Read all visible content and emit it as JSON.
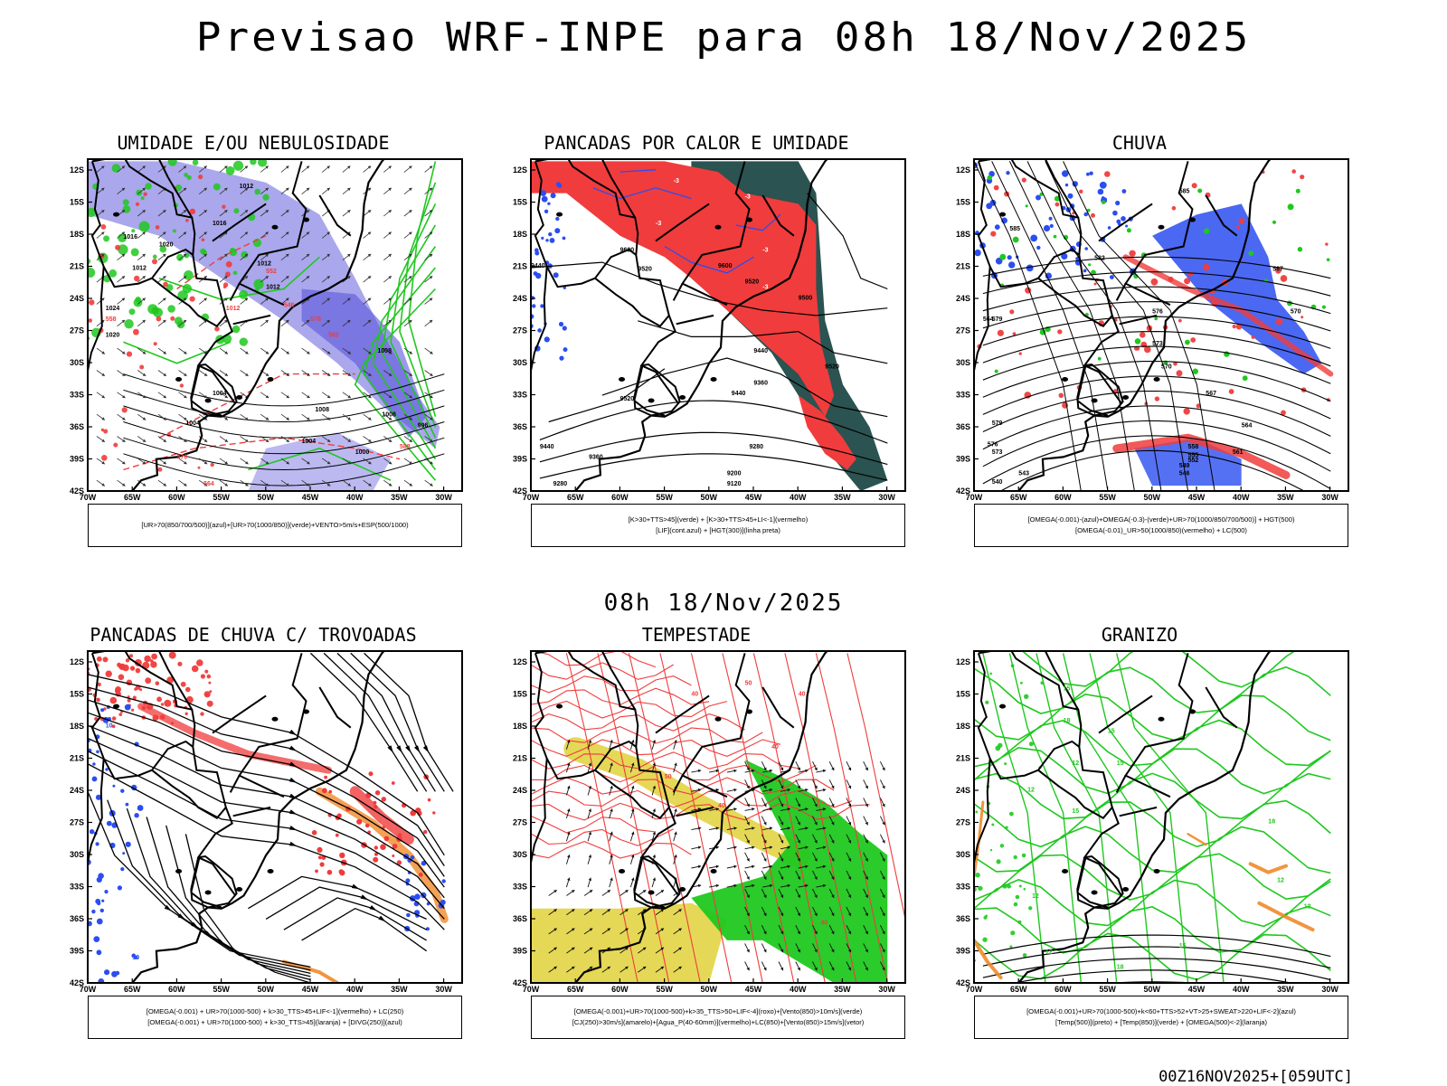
{
  "header": {
    "title": "Previsao WRF-INPE  para 08h 18/Nov/2025",
    "subtitle": "08h 18/Nov/2025",
    "run": "00Z16NOV2025+[059UTC]"
  },
  "axes": {
    "lat_labels": [
      "12S",
      "15S",
      "18S",
      "21S",
      "24S",
      "27S",
      "30S",
      "33S",
      "36S",
      "39S",
      "42S"
    ],
    "lon_labels": [
      "70W",
      "65W",
      "60W",
      "55W",
      "50W",
      "45W",
      "40W",
      "35W",
      "30W"
    ]
  },
  "colors": {
    "red": "#f03c3c",
    "green": "#1fc81f",
    "blue": "#2b4ef0",
    "lilac": "#8d8ae6",
    "darkteal": "#1f4a48",
    "yellow": "#e1d13a",
    "orange": "#f08a2a",
    "bright_green": "#14c814"
  },
  "panels": [
    {
      "title": "UMIDADE E/OU NEBULOSIDADE",
      "legend": [
        "[UR>70(850/700/500)](azul)+[UR>70(1000/850)](verde)+VENTO>5m/s+ESP(500/1000)"
      ],
      "contour_labels": [
        "1012",
        "1016",
        "1012",
        "1020",
        "1016",
        "1012",
        "1012",
        "1024",
        "1020",
        "1008",
        "1008",
        "1008",
        "1004",
        "1004",
        "1000",
        "996",
        "1004",
        "1012",
        "570",
        "564",
        "558",
        "552",
        "546",
        "576",
        "582",
        "588"
      ]
    },
    {
      "title": "PANCADAS POR CALOR E UMIDADE",
      "legend": [
        "[K>30+TTS>45](verde) + [K>30+TTS>45+LI<-1](vermelho)",
        "[LIF](cont.azul) + [HGT(300)](linha preta)"
      ],
      "contour_labels": [
        "9600",
        "9520",
        "9440",
        "9600",
        "9520",
        "9500",
        "9440",
        "9360",
        "9440",
        "9520",
        "9440",
        "9360",
        "9280",
        "9200",
        "9120",
        "9280",
        "9520",
        "-3",
        "-3",
        "-3",
        "-3",
        "-3",
        "-3"
      ]
    },
    {
      "title": "CHUVA",
      "legend": [
        "[OMEGA(-0.001)-(azul)+OMEGA(-0.3)-(verde)+UR>70(1000/850/700/500)] + HGT(500)",
        "[OMEGA(-0.01)_UR>50(1000/850)(vermelho) + LC(500)"
      ],
      "contour_labels": [
        "585",
        "585",
        "582",
        "576",
        "579",
        "573",
        "570",
        "567",
        "564",
        "561",
        "558",
        "555",
        "552",
        "549",
        "546",
        "543",
        "540",
        "579",
        "576",
        "573",
        "570",
        "567",
        "564"
      ]
    },
    {
      "title": "PANCADAS DE CHUVA C/ TROVOADAS",
      "legend": [
        "[OMEGA(-0.001) + UR>70(1000-500) + k>30_TTS>45+LIF<-1](vermelho) + LC(250)",
        "[OMEGA(-0.001) + UR>70(1000-500) + k>30_TTS>45](laranja) + [DIVG(250)](azul)"
      ],
      "contour_labels": [
        "10",
        "10"
      ]
    },
    {
      "title": "TEMPESTADE",
      "legend": [
        "[OMEGA(-0.001)+UR>70(1000-500)+k>35_TTS>50+LIF<-4](roxo)+[Vento(850)>10m/s](verde)",
        "[CJ(250)>30m/s](amarelo)+[Agua_P(40-60mm)](vermelho)+LC(850)+[Vento(850)>15m/s](vetor)"
      ],
      "contour_labels": [
        "40",
        "50",
        "40",
        "40",
        "50",
        "40",
        "40"
      ]
    },
    {
      "title": "GRANIZO",
      "legend": [
        "[OMEGA(-0.001)+UR>70(1000-500)+k<60+TTS>52+VT>25+SWEAT>220+LIF<-2](azul)",
        "[Temp(500)](preto) + [Temp(850)](verde) + [OMEGA(500)<-2](laranja)"
      ],
      "contour_labels": [
        "15",
        "15",
        "12",
        "15",
        "18",
        "12",
        "15",
        "12",
        "12",
        "15",
        "18",
        "18",
        "12",
        "12"
      ]
    }
  ]
}
